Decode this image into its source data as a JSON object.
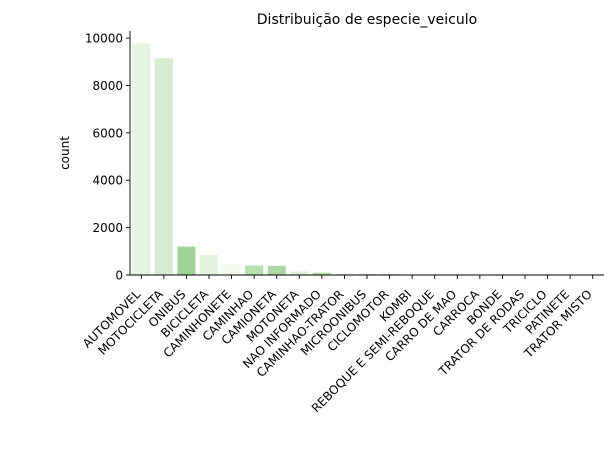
{
  "chart_data": {
    "type": "bar",
    "title": "Distribuição de especie_veiculo",
    "xlabel": "",
    "ylabel": "count",
    "ylim": [
      0,
      10300
    ],
    "yticks": [
      0,
      2000,
      4000,
      6000,
      8000,
      10000
    ],
    "grid": false,
    "categories": [
      "AUTOMOVEL",
      "MOTOCICLETA",
      "ONIBUS",
      "BICICLETA",
      "CAMINHONETE",
      "CAMINHAO",
      "CAMIONETA",
      "MOTONETA",
      "NAO INFORMADO",
      "CAMINHAO-TRATOR",
      "MICROONIBUS",
      "CICLOMOTOR",
      "KOMBI",
      "REBOQUE E SEMI-REBOQUE",
      "CARRO DE MAO",
      "CARROCA",
      "BONDE",
      "TRATOR DE RODAS",
      "TRICICLO",
      "PATINETE",
      "TRATOR MISTO"
    ],
    "values": [
      9780,
      9150,
      1200,
      850,
      460,
      400,
      390,
      150,
      100,
      60,
      50,
      40,
      20,
      15,
      10,
      8,
      6,
      5,
      4,
      3,
      2
    ],
    "bar_colors": [
      "#e6f5e1",
      "#d5ecd0",
      "#a0d497",
      "#e3f3de",
      "#f2faef",
      "#b8e0af",
      "#a9d9a0",
      "#dff0da",
      "#b5deac",
      "#e9f5e6",
      "#cfeac9",
      "#c8e6c1",
      "#d3ecce",
      "#dcefd6",
      "#e0f1db",
      "#e8f5e4",
      "#edf7ea",
      "#d9eed4",
      "#e4f3df",
      "#eaf6e7",
      "#f0f9ed"
    ]
  }
}
